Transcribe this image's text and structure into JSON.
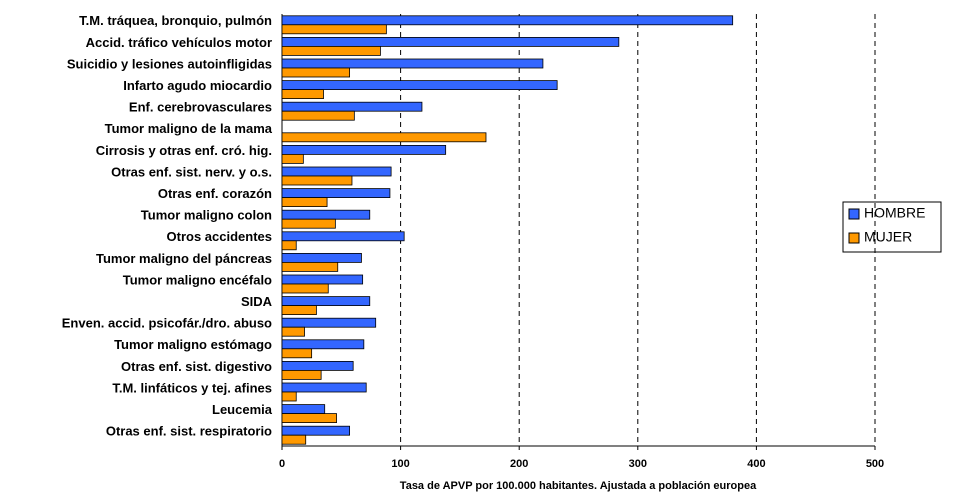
{
  "chart_data": {
    "type": "bar",
    "orientation": "horizontal",
    "x_label": "Tasa de APVP por 100.000 habitantes. Ajustada a población europea",
    "categories": [
      "T.M. tráquea, bronquio,  pulmón",
      "Accid. tráfico vehículos motor",
      "Suicidio y lesiones autoinfligidas",
      "Infarto agudo miocardio",
      "Enf. cerebrovasculares",
      "Tumor maligno de la mama",
      "Cirrosis y otras enf. cró. hig.",
      "Otras enf. sist. nerv. y o.s.",
      "Otras enf. corazón",
      "Tumor maligno colon",
      "Otros accidentes",
      "Tumor maligno del páncreas",
      "Tumor maligno encéfalo",
      "SIDA",
      "Enven. accid. psicofár./dro. abuso",
      "Tumor maligno estómago",
      "Otras enf. sist. digestivo",
      "T.M. linfáticos y tej. afines",
      "Leucemia",
      "Otras enf. sist. respiratorio"
    ],
    "series": [
      {
        "name": "HOMBRE",
        "color": "#3366ff",
        "values": [
          380,
          284,
          220,
          232,
          118,
          null,
          138,
          92,
          91,
          74,
          103,
          67,
          68,
          74,
          79,
          69,
          60,
          71,
          36,
          57
        ]
      },
      {
        "name": "MUJER",
        "color": "#ff9900",
        "values": [
          88,
          83,
          57,
          35,
          61,
          172,
          18,
          59,
          38,
          45,
          12,
          47,
          39,
          29,
          19,
          25,
          33,
          12,
          46,
          20
        ]
      }
    ],
    "xlim": [
      0,
      500
    ],
    "xticks": [
      0,
      100,
      200,
      300,
      400,
      500
    ],
    "grid": true,
    "legend": "right"
  }
}
